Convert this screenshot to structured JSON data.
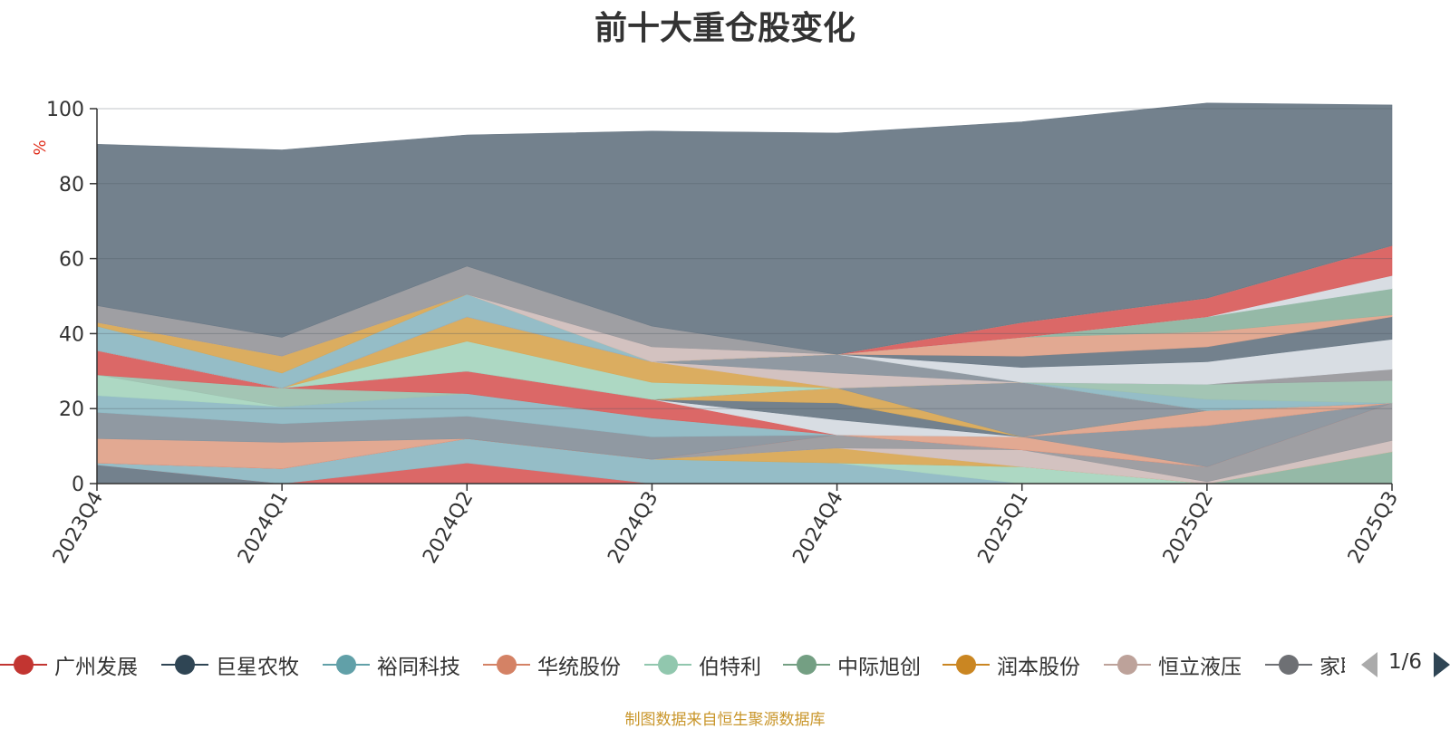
{
  "chart_data": {
    "type": "area",
    "stacked": true,
    "title": "前十大重仓股变化",
    "ylabel": "%",
    "ylim": [
      0,
      100
    ],
    "yticks": [
      0,
      20,
      40,
      60,
      80,
      100
    ],
    "categories": [
      "2023Q4",
      "2024Q1",
      "2024Q2",
      "2024Q3",
      "2024Q4",
      "2025Q1",
      "2025Q2",
      "2025Q3"
    ],
    "grid": true,
    "series": [
      {
        "name": "",
        "color": "#6b7a87",
        "values": [
          5,
          0,
          0,
          0,
          0,
          0,
          0,
          0
        ]
      },
      {
        "name": "广州发展",
        "color": "#d9605f",
        "values": [
          0,
          0,
          5.5,
          0,
          0,
          0,
          0,
          0
        ]
      },
      {
        "name": "裕同科技",
        "color": "#8fb9c4",
        "values": [
          0.5,
          4,
          6.5,
          6.5,
          5.5,
          0,
          0,
          0
        ]
      },
      {
        "name": "伯特利",
        "color": "#a9d6c0",
        "values": [
          0,
          0,
          0,
          0,
          0,
          4.5,
          0,
          0
        ]
      },
      {
        "name": "中际旭创",
        "color": "#8fb5a2",
        "values": [
          0,
          0,
          0,
          0,
          0,
          0,
          0,
          8.5
        ]
      },
      {
        "name": "润本股份",
        "color": "#d9a957",
        "values": [
          0,
          0,
          0,
          0,
          4,
          0,
          0,
          0
        ]
      },
      {
        "name": "恒立液压",
        "color": "#d1bfbd",
        "values": [
          0,
          0,
          0,
          0,
          0,
          4.5,
          0.5,
          3
        ]
      },
      {
        "name": "",
        "color": "#9a9a9e",
        "values": [
          0,
          0,
          0,
          0,
          3.5,
          0,
          4,
          10
        ]
      },
      {
        "name": "",
        "color": "#d9605f",
        "values": [
          0,
          0,
          0,
          0,
          0,
          0,
          0,
          0
        ]
      },
      {
        "name": "华统股份",
        "color": "#e0a48c",
        "values": [
          6.5,
          7,
          0,
          0,
          0,
          3.5,
          0,
          0
        ]
      },
      {
        "name": "",
        "color": "#8a949d",
        "values": [
          7,
          5,
          6,
          6,
          0,
          0,
          11,
          0
        ]
      },
      {
        "name": "",
        "color": "#8fb9c4",
        "values": [
          4.5,
          4.5,
          6,
          5,
          0,
          0,
          0,
          0
        ]
      },
      {
        "name": "",
        "color": "#a9d6c0",
        "values": [
          5.5,
          0,
          0,
          0,
          0,
          0,
          0,
          0
        ]
      },
      {
        "name": "",
        "color": "#9ec2b0",
        "values": [
          0,
          5,
          0,
          0,
          0,
          0,
          0,
          0
        ]
      },
      {
        "name": "",
        "color": "#d9605f",
        "values": [
          6.5,
          0,
          6,
          5,
          0,
          0,
          0,
          0
        ]
      },
      {
        "name": "",
        "color": "#e0a48c",
        "values": [
          0,
          0,
          0,
          0,
          0,
          0,
          4,
          0
        ]
      },
      {
        "name": "",
        "color": "#d6dbe2",
        "values": [
          0,
          0,
          0,
          0,
          4,
          0,
          0,
          0
        ]
      },
      {
        "name": "",
        "color": "#6b7a87",
        "values": [
          0,
          0,
          0,
          0,
          4.5,
          0,
          0,
          0
        ]
      },
      {
        "name": "",
        "color": "#d9a957",
        "values": [
          0,
          0,
          0,
          0,
          4,
          0,
          0,
          0
        ]
      },
      {
        "name": "",
        "color": "#8a949d",
        "values": [
          0,
          0,
          0,
          0,
          0,
          14.5,
          0,
          0
        ]
      },
      {
        "name": "",
        "color": "#9a9a9e",
        "values": [
          0,
          0,
          0,
          0,
          0,
          0,
          0,
          0
        ]
      },
      {
        "name": "",
        "color": "#a9d6c0",
        "values": [
          0,
          0,
          8,
          4.5,
          0,
          0,
          0,
          0
        ]
      },
      {
        "name": "",
        "color": "#d9a957",
        "values": [
          0,
          0,
          6.5,
          5.5,
          0,
          0,
          0,
          0
        ]
      },
      {
        "name": "",
        "color": "#d1bfbd",
        "values": [
          0,
          0,
          0,
          0,
          4,
          0,
          0,
          0
        ]
      },
      {
        "name": "",
        "color": "#8a949d",
        "values": [
          0,
          0,
          0,
          0,
          5,
          0,
          0,
          0
        ]
      },
      {
        "name": "",
        "color": "#8fb9c4",
        "values": [
          0,
          0,
          0,
          0,
          0,
          0,
          3,
          0
        ]
      },
      {
        "name": "",
        "color": "#9ec2b0",
        "values": [
          0,
          0,
          0,
          0,
          0,
          0,
          4,
          6
        ]
      },
      {
        "name": "",
        "color": "#9a9a9e",
        "values": [
          0,
          0,
          0,
          0,
          0,
          0,
          0,
          3
        ]
      },
      {
        "name": "",
        "color": "#d6dbe2",
        "values": [
          0,
          0,
          0,
          0,
          0,
          4,
          6,
          8
        ]
      },
      {
        "name": "",
        "color": "#6b7a87",
        "values": [
          0,
          0,
          0,
          0,
          0,
          3,
          4,
          6
        ]
      },
      {
        "name": "",
        "color": "#e0a48c",
        "values": [
          0,
          0,
          0,
          0,
          0,
          5,
          4,
          0.5
        ]
      },
      {
        "name": "",
        "color": "#8fb5a2",
        "values": [
          0,
          0,
          0,
          0,
          0,
          0,
          4,
          7
        ]
      },
      {
        "name": "",
        "color": "#a9d6c0",
        "values": [
          0,
          0,
          0,
          0,
          0,
          0,
          0,
          0
        ]
      },
      {
        "name": "",
        "color": "#d6dbe2",
        "values": [
          0,
          0,
          0,
          0,
          0,
          0,
          0,
          3.5
        ]
      },
      {
        "name": "",
        "color": "#d9605f",
        "values": [
          0,
          0,
          0,
          0,
          0,
          4,
          5,
          8
        ]
      },
      {
        "name": "",
        "color": "#8fb9c4",
        "values": [
          6.5,
          4,
          6,
          0,
          0,
          0,
          0,
          0
        ]
      },
      {
        "name": "",
        "color": "#d9a957",
        "values": [
          1,
          4.5,
          0,
          0,
          0,
          0,
          0,
          0
        ]
      },
      {
        "name": "",
        "color": "#d1bfbd",
        "values": [
          0,
          0,
          0,
          4,
          0,
          0,
          0,
          0
        ]
      },
      {
        "name": "",
        "color": "#9a9a9e",
        "values": [
          4.5,
          5,
          7.5,
          5.5,
          0,
          0,
          0,
          0
        ]
      },
      {
        "name": "",
        "color": "#6b7a87",
        "values": [
          43,
          50,
          35,
          52,
          59,
          53.5,
          52,
          37.5
        ]
      }
    ]
  },
  "legend": {
    "items": [
      {
        "label": "广州发展",
        "color": "#c23531"
      },
      {
        "label": "巨星农牧",
        "color": "#2f4554"
      },
      {
        "label": "裕同科技",
        "color": "#61a0a8"
      },
      {
        "label": "华统股份",
        "color": "#d48265"
      },
      {
        "label": "伯特利",
        "color": "#91c7ae"
      },
      {
        "label": "中际旭创",
        "color": "#749f83"
      },
      {
        "label": "润本股份",
        "color": "#ca8622"
      },
      {
        "label": "恒立液压",
        "color": "#bda29a"
      },
      {
        "label": "家联科技",
        "color": "#6e7074"
      }
    ],
    "page": "1/6"
  },
  "footer": "制图数据来自恒生聚源数据库"
}
